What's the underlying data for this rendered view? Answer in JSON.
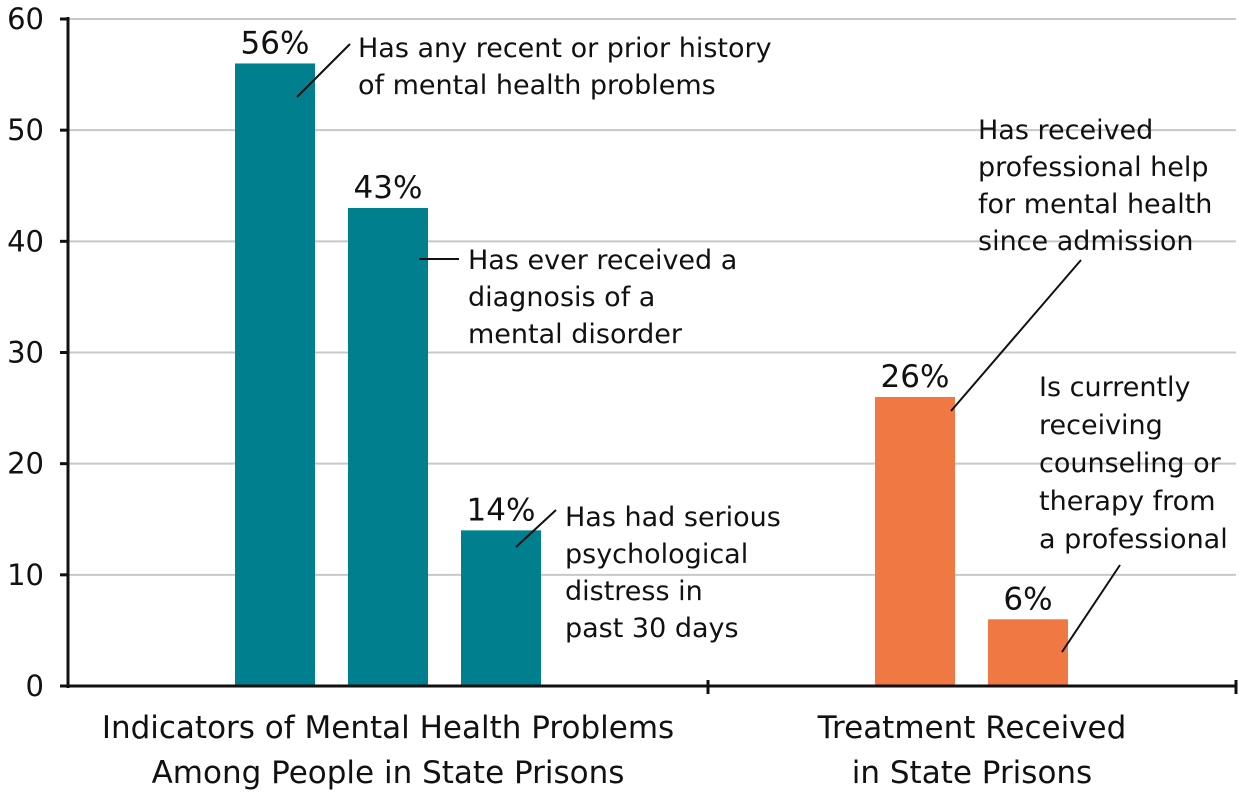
{
  "chart_data": {
    "type": "bar",
    "ylim": [
      0,
      60
    ],
    "yticks": [
      0,
      10,
      20,
      30,
      40,
      50,
      60
    ],
    "grid": true,
    "groups": [
      {
        "label_lines": [
          "Indicators of Mental Health Problems",
          "Among People in State Prisons"
        ],
        "color": "#00808f",
        "bars": [
          {
            "value": 56,
            "value_label": "56%",
            "annotation": [
              "Has any recent or prior history",
              "of mental health problems"
            ]
          },
          {
            "value": 43,
            "value_label": "43%",
            "annotation": [
              "Has ever received a",
              "diagnosis of a",
              "mental disorder"
            ]
          },
          {
            "value": 14,
            "value_label": "14%",
            "annotation": [
              "Has had serious",
              "psychological",
              "distress in",
              "past 30 days"
            ]
          }
        ]
      },
      {
        "label_lines": [
          "Treatment Received",
          "in State Prisons"
        ],
        "color": "#f07843",
        "bars": [
          {
            "value": 26,
            "value_label": "26%",
            "annotation": [
              "Has received",
              "professional help",
              "for mental health",
              "since admission"
            ]
          },
          {
            "value": 6,
            "value_label": "6%",
            "annotation": [
              "Is currently",
              "receiving",
              "counseling or",
              "therapy from",
              "a professional"
            ]
          }
        ]
      }
    ]
  }
}
